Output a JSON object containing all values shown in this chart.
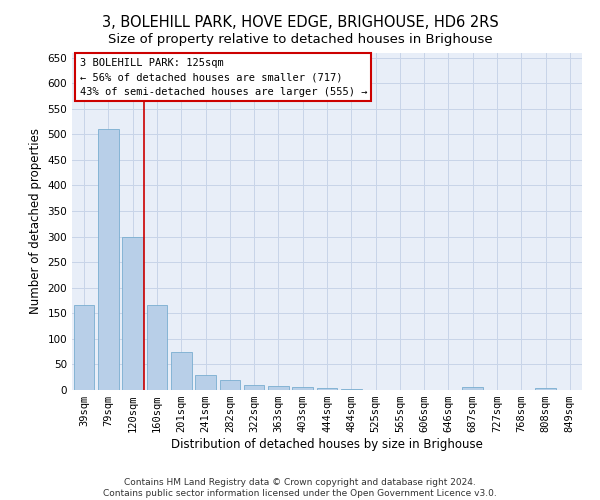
{
  "title": "3, BOLEHILL PARK, HOVE EDGE, BRIGHOUSE, HD6 2RS",
  "subtitle": "Size of property relative to detached houses in Brighouse",
  "xlabel": "Distribution of detached houses by size in Brighouse",
  "ylabel": "Number of detached properties",
  "footer_line1": "Contains HM Land Registry data © Crown copyright and database right 2024.",
  "footer_line2": "Contains public sector information licensed under the Open Government Licence v3.0.",
  "categories": [
    "39sqm",
    "79sqm",
    "120sqm",
    "160sqm",
    "201sqm",
    "241sqm",
    "282sqm",
    "322sqm",
    "363sqm",
    "403sqm",
    "444sqm",
    "484sqm",
    "525sqm",
    "565sqm",
    "606sqm",
    "646sqm",
    "687sqm",
    "727sqm",
    "768sqm",
    "808sqm",
    "849sqm"
  ],
  "values": [
    167,
    510,
    300,
    167,
    75,
    30,
    20,
    10,
    8,
    5,
    3,
    2,
    0,
    0,
    0,
    0,
    5,
    0,
    0,
    3,
    0
  ],
  "bar_color": "#b8cfe8",
  "bar_edge_color": "#7aaed0",
  "grid_color": "#c8d4e8",
  "bg_color": "#e8eef8",
  "vline_color": "#cc0000",
  "vline_x": 2.45,
  "annotation_text": "3 BOLEHILL PARK: 125sqm\n← 56% of detached houses are smaller (717)\n43% of semi-detached houses are larger (555) →",
  "annotation_box_color": "#cc0000",
  "ylim": [
    0,
    660
  ],
  "yticks": [
    0,
    50,
    100,
    150,
    200,
    250,
    300,
    350,
    400,
    450,
    500,
    550,
    600,
    650
  ],
  "title_fontsize": 10.5,
  "subtitle_fontsize": 9.5,
  "axis_label_fontsize": 8.5,
  "tick_fontsize": 7.5,
  "footer_fontsize": 6.5,
  "annotation_fontsize": 7.5
}
